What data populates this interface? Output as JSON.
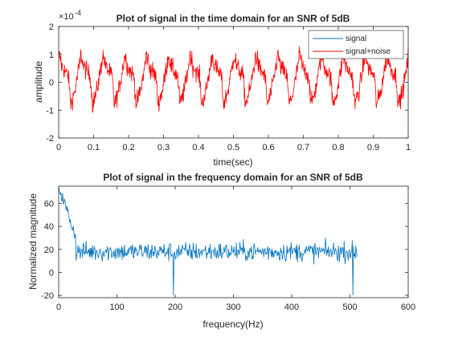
{
  "chart_data": [
    {
      "type": "line",
      "title": "Plot of signal in the time domain for an SNR of 5dB",
      "xlabel": "time(sec)",
      "ylabel": "amplitude",
      "xlim": [
        0,
        1
      ],
      "ylim": [
        -2,
        2
      ],
      "y_exponent_label": "×10",
      "y_exponent_power": "-4",
      "xticks": [
        0,
        0.1,
        0.2,
        0.3,
        0.4,
        0.5,
        0.6,
        0.7,
        0.8,
        0.9,
        1
      ],
      "xtick_labels": [
        "0",
        "0.1",
        "0.2",
        "0.3",
        "0.4",
        "0.5",
        "0.6",
        "0.7",
        "0.8",
        "0.9",
        "1"
      ],
      "yticks": [
        -2,
        -1,
        0,
        1,
        2
      ],
      "ytick_labels": [
        "-2",
        "-1",
        "0",
        "1",
        "2"
      ],
      "legend_position": "top-right",
      "grid": false,
      "series": [
        {
          "name": "signal",
          "color": "#0072BD",
          "visible_in_plot": false
        },
        {
          "name": "signal+noise",
          "color": "#FF0000",
          "pattern_period": 0.0625,
          "sample_count": 1000,
          "range_min": -1.6,
          "range_max": 1.3
        }
      ]
    },
    {
      "type": "line",
      "title": "Plot of signal in the frequency domain for an SNR of 5dB",
      "xlabel": "frequency(Hz)",
      "ylabel": "Normalized magnitude",
      "xlim": [
        0,
        600
      ],
      "ylim": [
        -22,
        75
      ],
      "xticks": [
        0,
        100,
        200,
        300,
        400,
        500,
        600
      ],
      "xtick_labels": [
        "0",
        "100",
        "200",
        "300",
        "400",
        "500",
        "600"
      ],
      "yticks": [
        -20,
        0,
        20,
        40,
        60
      ],
      "ytick_labels": [
        "-20",
        "0",
        "20",
        "40",
        "60"
      ],
      "grid": false,
      "series": [
        {
          "color": "#0072BD",
          "x_start": 0,
          "x_end": 512,
          "peak_value": 75,
          "baseline_mean": 18,
          "baseline_min": -20,
          "baseline_max": 37
        }
      ]
    }
  ]
}
